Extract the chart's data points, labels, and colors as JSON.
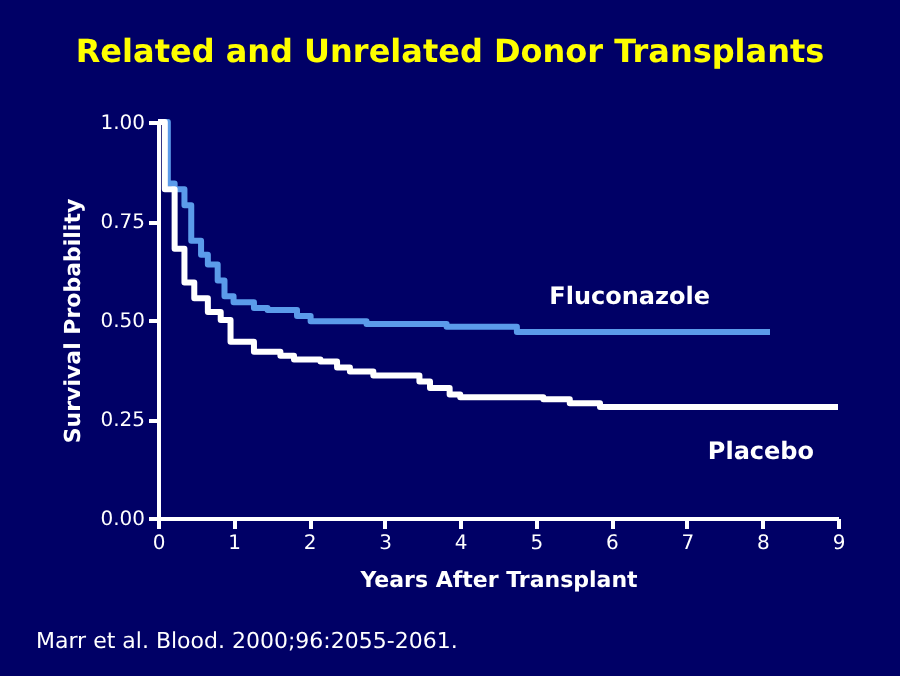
{
  "chart_data": {
    "type": "step",
    "title": "Related and Unrelated Donor Transplants",
    "xlabel": "Years After Transplant",
    "ylabel": "Survival Probability",
    "series": [
      {
        "name": "Fluconazole",
        "color": "#5b9bea",
        "x": [
          0,
          0.13,
          0.22,
          0.35,
          0.44,
          0.57,
          0.66,
          0.79,
          0.88,
          1.0,
          1.27,
          1.45,
          1.84,
          2.02,
          2.76,
          3.82,
          4.75,
          8.1
        ],
        "values": [
          1.0,
          0.845,
          0.83,
          0.79,
          0.7,
          0.665,
          0.64,
          0.6,
          0.56,
          0.545,
          0.53,
          0.525,
          0.51,
          0.497,
          0.49,
          0.483,
          0.47,
          0.47
        ]
      },
      {
        "name": "Placebo",
        "color": "#ffffff",
        "x": [
          0,
          0.09,
          0.22,
          0.35,
          0.48,
          0.66,
          0.83,
          0.96,
          1.27,
          1.62,
          1.8,
          2.15,
          2.37,
          2.54,
          2.85,
          3.46,
          3.6,
          3.86,
          4.0,
          5.1,
          5.45,
          5.85,
          9.0
        ],
        "values": [
          1.0,
          0.83,
          0.68,
          0.595,
          0.555,
          0.52,
          0.5,
          0.445,
          0.42,
          0.41,
          0.4,
          0.395,
          0.38,
          0.37,
          0.36,
          0.345,
          0.328,
          0.312,
          0.305,
          0.3,
          0.29,
          0.28,
          0.28
        ]
      }
    ],
    "xlim": [
      0,
      9
    ],
    "xticks": [
      0,
      1,
      2,
      3,
      4,
      5,
      6,
      7,
      8,
      9
    ],
    "ylim": [
      0,
      1
    ],
    "yticks": [
      {
        "value": 0,
        "label": "0.00"
      },
      0.25,
      {
        "value": 0.5,
        "label": "0.50"
      },
      0.75,
      {
        "value": 1,
        "label": "1.00"
      }
    ],
    "grid": false,
    "line_style": "solid",
    "marker": "none",
    "annotations": [
      "Marr et al. Blood. 2000;96:2055-2061."
    ]
  }
}
